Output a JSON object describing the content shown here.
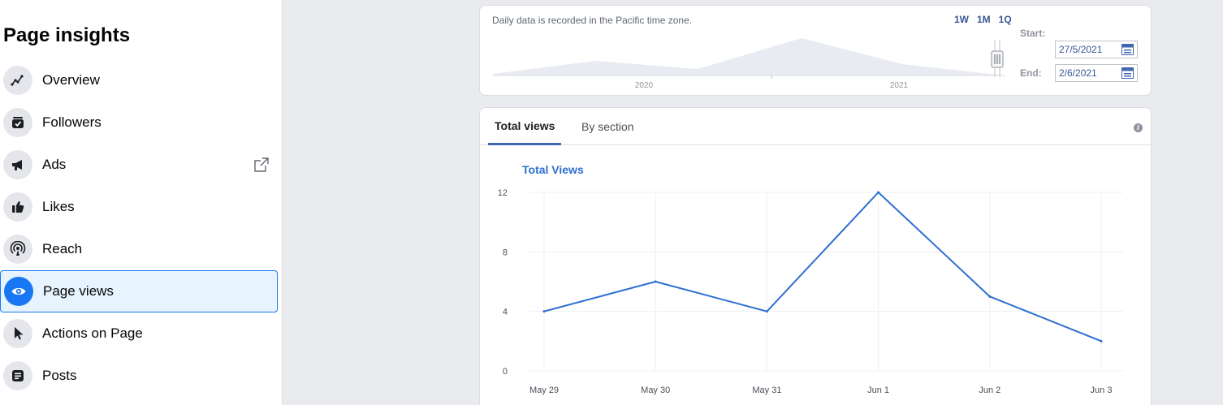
{
  "sidebar": {
    "title": "Page insights",
    "items": [
      {
        "label": "Overview",
        "icon": "trend-line-icon"
      },
      {
        "label": "Followers",
        "icon": "followers-icon"
      },
      {
        "label": "Ads",
        "icon": "megaphone-icon"
      },
      {
        "label": "Likes",
        "icon": "thumbs-up-icon"
      },
      {
        "label": "Reach",
        "icon": "broadcast-icon"
      },
      {
        "label": "Page views",
        "icon": "eye-icon",
        "active": true
      },
      {
        "label": "Actions on Page",
        "icon": "cursor-icon"
      },
      {
        "label": "Posts",
        "icon": "posts-icon"
      }
    ]
  },
  "range": {
    "note": "Daily data is recorded in the Pacific time zone.",
    "buttons": [
      "1W",
      "1M",
      "1Q"
    ],
    "years": [
      "2020",
      "2021"
    ],
    "start_label": "Start:",
    "start_value": "27/5/2021",
    "end_label": "End:",
    "end_value": "2/6/2021"
  },
  "tabs": {
    "total": "Total views",
    "section": "By section"
  },
  "colors": {
    "accent": "#1877f2",
    "line": "#2e6fd1"
  },
  "chart_data": {
    "type": "line",
    "title": "Total Views",
    "categories": [
      "May 29",
      "May 30",
      "May 31",
      "Jun 1",
      "Jun 2",
      "Jun 3"
    ],
    "series": [
      {
        "values": [
          4,
          6,
          4,
          12,
          5,
          2
        ]
      }
    ],
    "yticks": [
      0,
      4,
      8,
      12
    ],
    "ylim": [
      0,
      12
    ],
    "grid": true
  }
}
